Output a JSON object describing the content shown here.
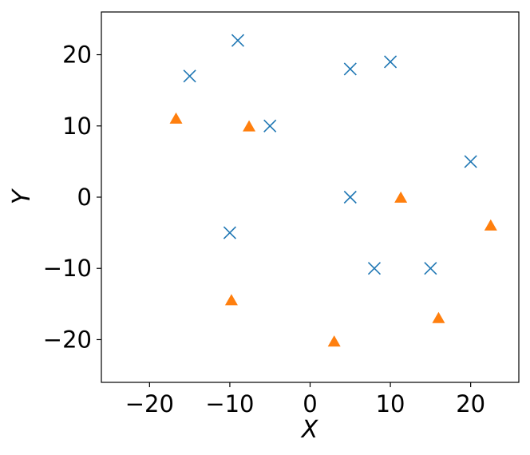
{
  "chart_data": {
    "type": "scatter",
    "title": "",
    "xlabel": "X",
    "ylabel": "Y",
    "xlim": [
      -26,
      26
    ],
    "ylim": [
      -26,
      26
    ],
    "xticks": [
      -20,
      -10,
      0,
      10,
      20
    ],
    "yticks": [
      -20,
      -10,
      0,
      10,
      20
    ],
    "xtick_labels": [
      "−20",
      "−10",
      "0",
      "10",
      "20"
    ],
    "ytick_labels": [
      "−20",
      "−10",
      "0",
      "10",
      "20"
    ],
    "grid": false,
    "legend": "none",
    "series": [
      {
        "marker": "x",
        "color": "#1f77b4",
        "points": [
          {
            "x": -15,
            "y": 17
          },
          {
            "x": -9,
            "y": 22
          },
          {
            "x": -5,
            "y": 10
          },
          {
            "x": -10,
            "y": -5
          },
          {
            "x": 5,
            "y": 18
          },
          {
            "x": 10,
            "y": 19
          },
          {
            "x": 5,
            "y": 0
          },
          {
            "x": 8,
            "y": -10
          },
          {
            "x": 15,
            "y": -10
          },
          {
            "x": 20,
            "y": 5
          }
        ]
      },
      {
        "marker": "triangle",
        "color": "#ff7f0e",
        "points": [
          {
            "x": -16.7,
            "y": 11
          },
          {
            "x": -7.6,
            "y": 9.9
          },
          {
            "x": -9.8,
            "y": -14.5
          },
          {
            "x": 3.0,
            "y": -20.3
          },
          {
            "x": 11.3,
            "y": -0.1
          },
          {
            "x": 16.0,
            "y": -17.0
          },
          {
            "x": 22.5,
            "y": -4.0
          }
        ]
      }
    ]
  }
}
